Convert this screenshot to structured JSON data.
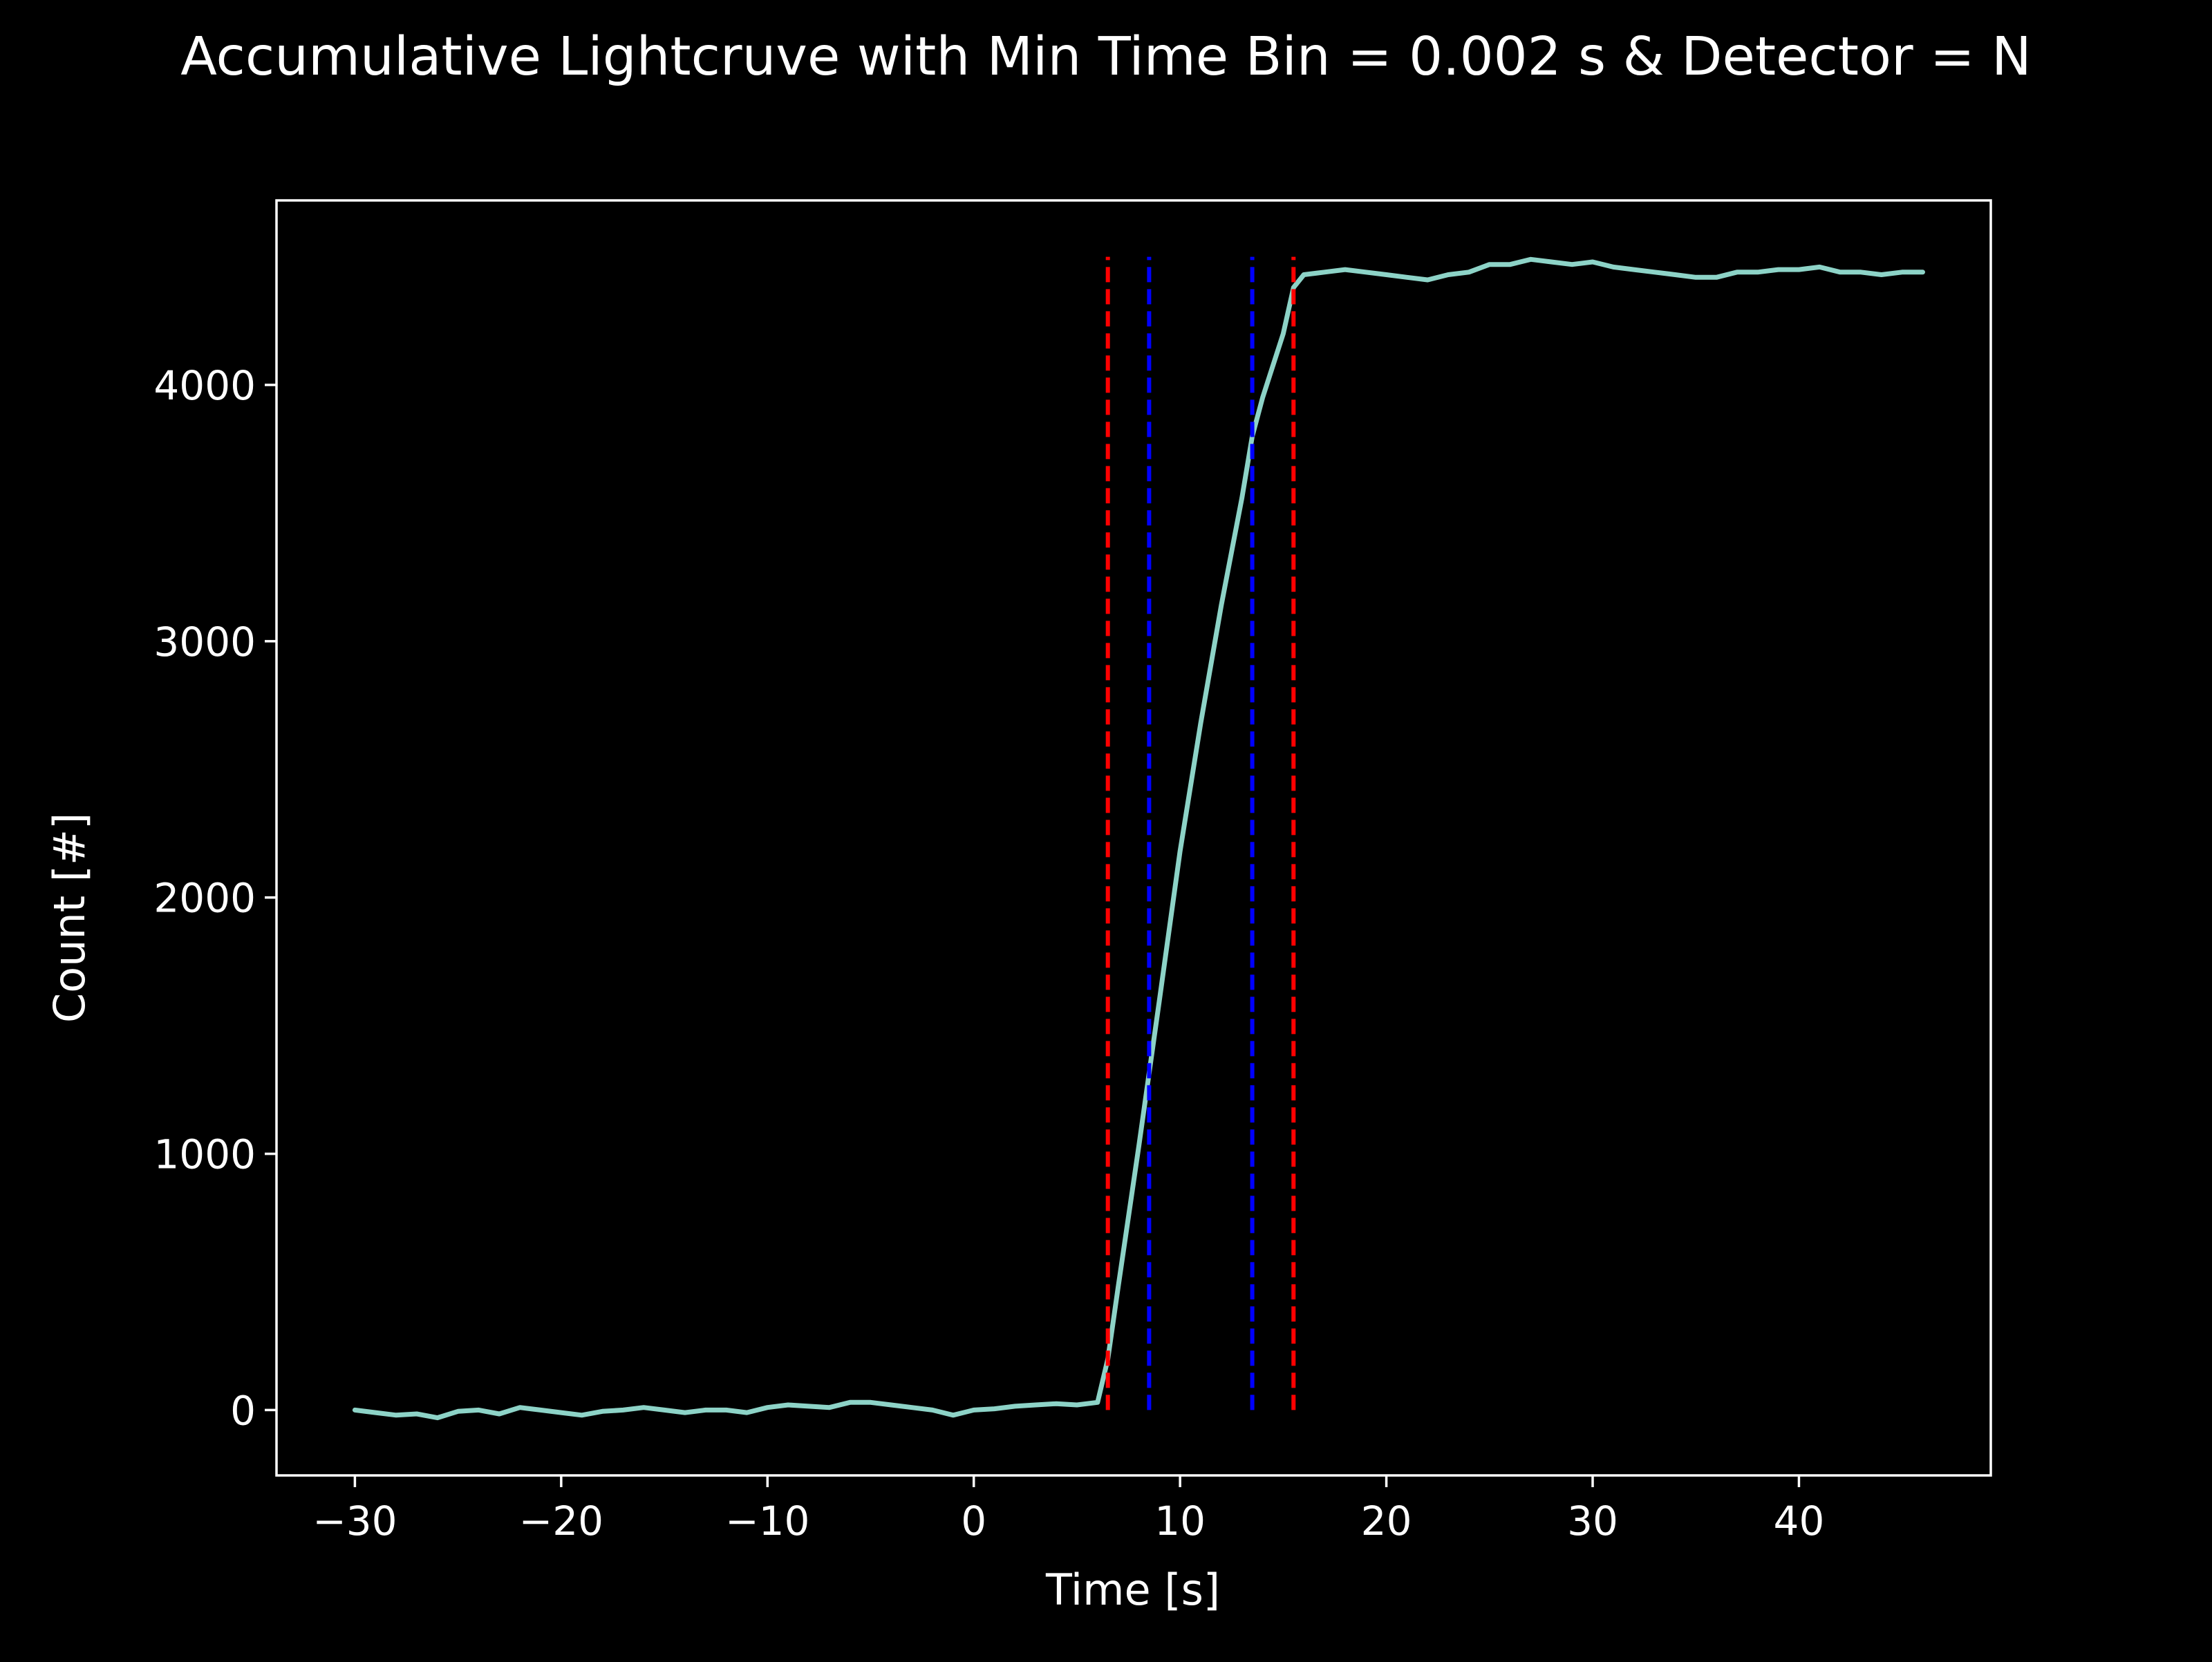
{
  "chart_data": {
    "type": "line",
    "title": "Accumulative Lightcruve with Min Time Bin = 0.002 s & Detector = N",
    "xlabel": "Time [s]",
    "ylabel": "Count [#]",
    "xlim": [
      -33.8,
      49.3
    ],
    "ylim": [
      -255,
      4720
    ],
    "xticks": [
      -30,
      -20,
      -10,
      0,
      10,
      20,
      30,
      40
    ],
    "xtick_labels": [
      "−30",
      "−20",
      "−10",
      "0",
      "10",
      "20",
      "30",
      "40"
    ],
    "yticks": [
      0,
      1000,
      2000,
      3000,
      4000
    ],
    "ytick_labels": [
      "0",
      "1000",
      "2000",
      "3000",
      "4000"
    ],
    "grid": false,
    "background": "#000000",
    "series": [
      {
        "color": "#8dd3c7",
        "x": [
          -30,
          -29,
          -28,
          -27,
          -26,
          -25,
          -24,
          -23,
          -22,
          -21,
          -20,
          -19,
          -18,
          -17,
          -16,
          -15,
          -14,
          -13,
          -12,
          -11,
          -10,
          -9,
          -8,
          -7,
          -6,
          -5,
          -4,
          -3,
          -2,
          -1,
          0,
          1,
          2,
          3,
          4,
          5,
          6,
          6.5,
          7,
          8,
          9,
          10,
          11,
          12,
          13,
          13.5,
          14,
          15,
          15.5,
          16,
          17,
          18,
          19,
          20,
          21,
          22,
          23,
          24,
          25,
          26,
          27,
          28,
          29,
          30,
          31,
          32,
          33,
          34,
          35,
          36,
          37,
          38,
          39,
          40,
          41,
          42,
          43,
          44,
          45,
          46
        ],
        "y": [
          0,
          -10,
          -20,
          -15,
          -30,
          -5,
          0,
          -15,
          10,
          0,
          -10,
          -20,
          -5,
          0,
          10,
          0,
          -10,
          0,
          0,
          -10,
          10,
          20,
          15,
          10,
          30,
          30,
          20,
          10,
          0,
          -20,
          0,
          5,
          15,
          20,
          25,
          20,
          30,
          200,
          480,
          1030,
          1600,
          2180,
          2680,
          3140,
          3560,
          3800,
          3950,
          4200,
          4380,
          4430,
          4440,
          4450,
          4440,
          4430,
          4420,
          4410,
          4430,
          4440,
          4470,
          4470,
          4490,
          4480,
          4470,
          4480,
          4460,
          4450,
          4440,
          4430,
          4420,
          4420,
          4440,
          4440,
          4450,
          4450,
          4460,
          4440,
          4440,
          4430,
          4440,
          4440
        ]
      }
    ],
    "vlines": [
      {
        "x": 6.5,
        "color": "#ff0000",
        "style": "dashed",
        "ymin": 0,
        "ymax": 4500
      },
      {
        "x": 8.5,
        "color": "#0000ff",
        "style": "dashed",
        "ymin": 0,
        "ymax": 4500
      },
      {
        "x": 13.5,
        "color": "#0000ff",
        "style": "dashed",
        "ymin": 0,
        "ymax": 4500
      },
      {
        "x": 15.5,
        "color": "#ff0000",
        "style": "dashed",
        "ymin": 0,
        "ymax": 4500
      }
    ]
  }
}
